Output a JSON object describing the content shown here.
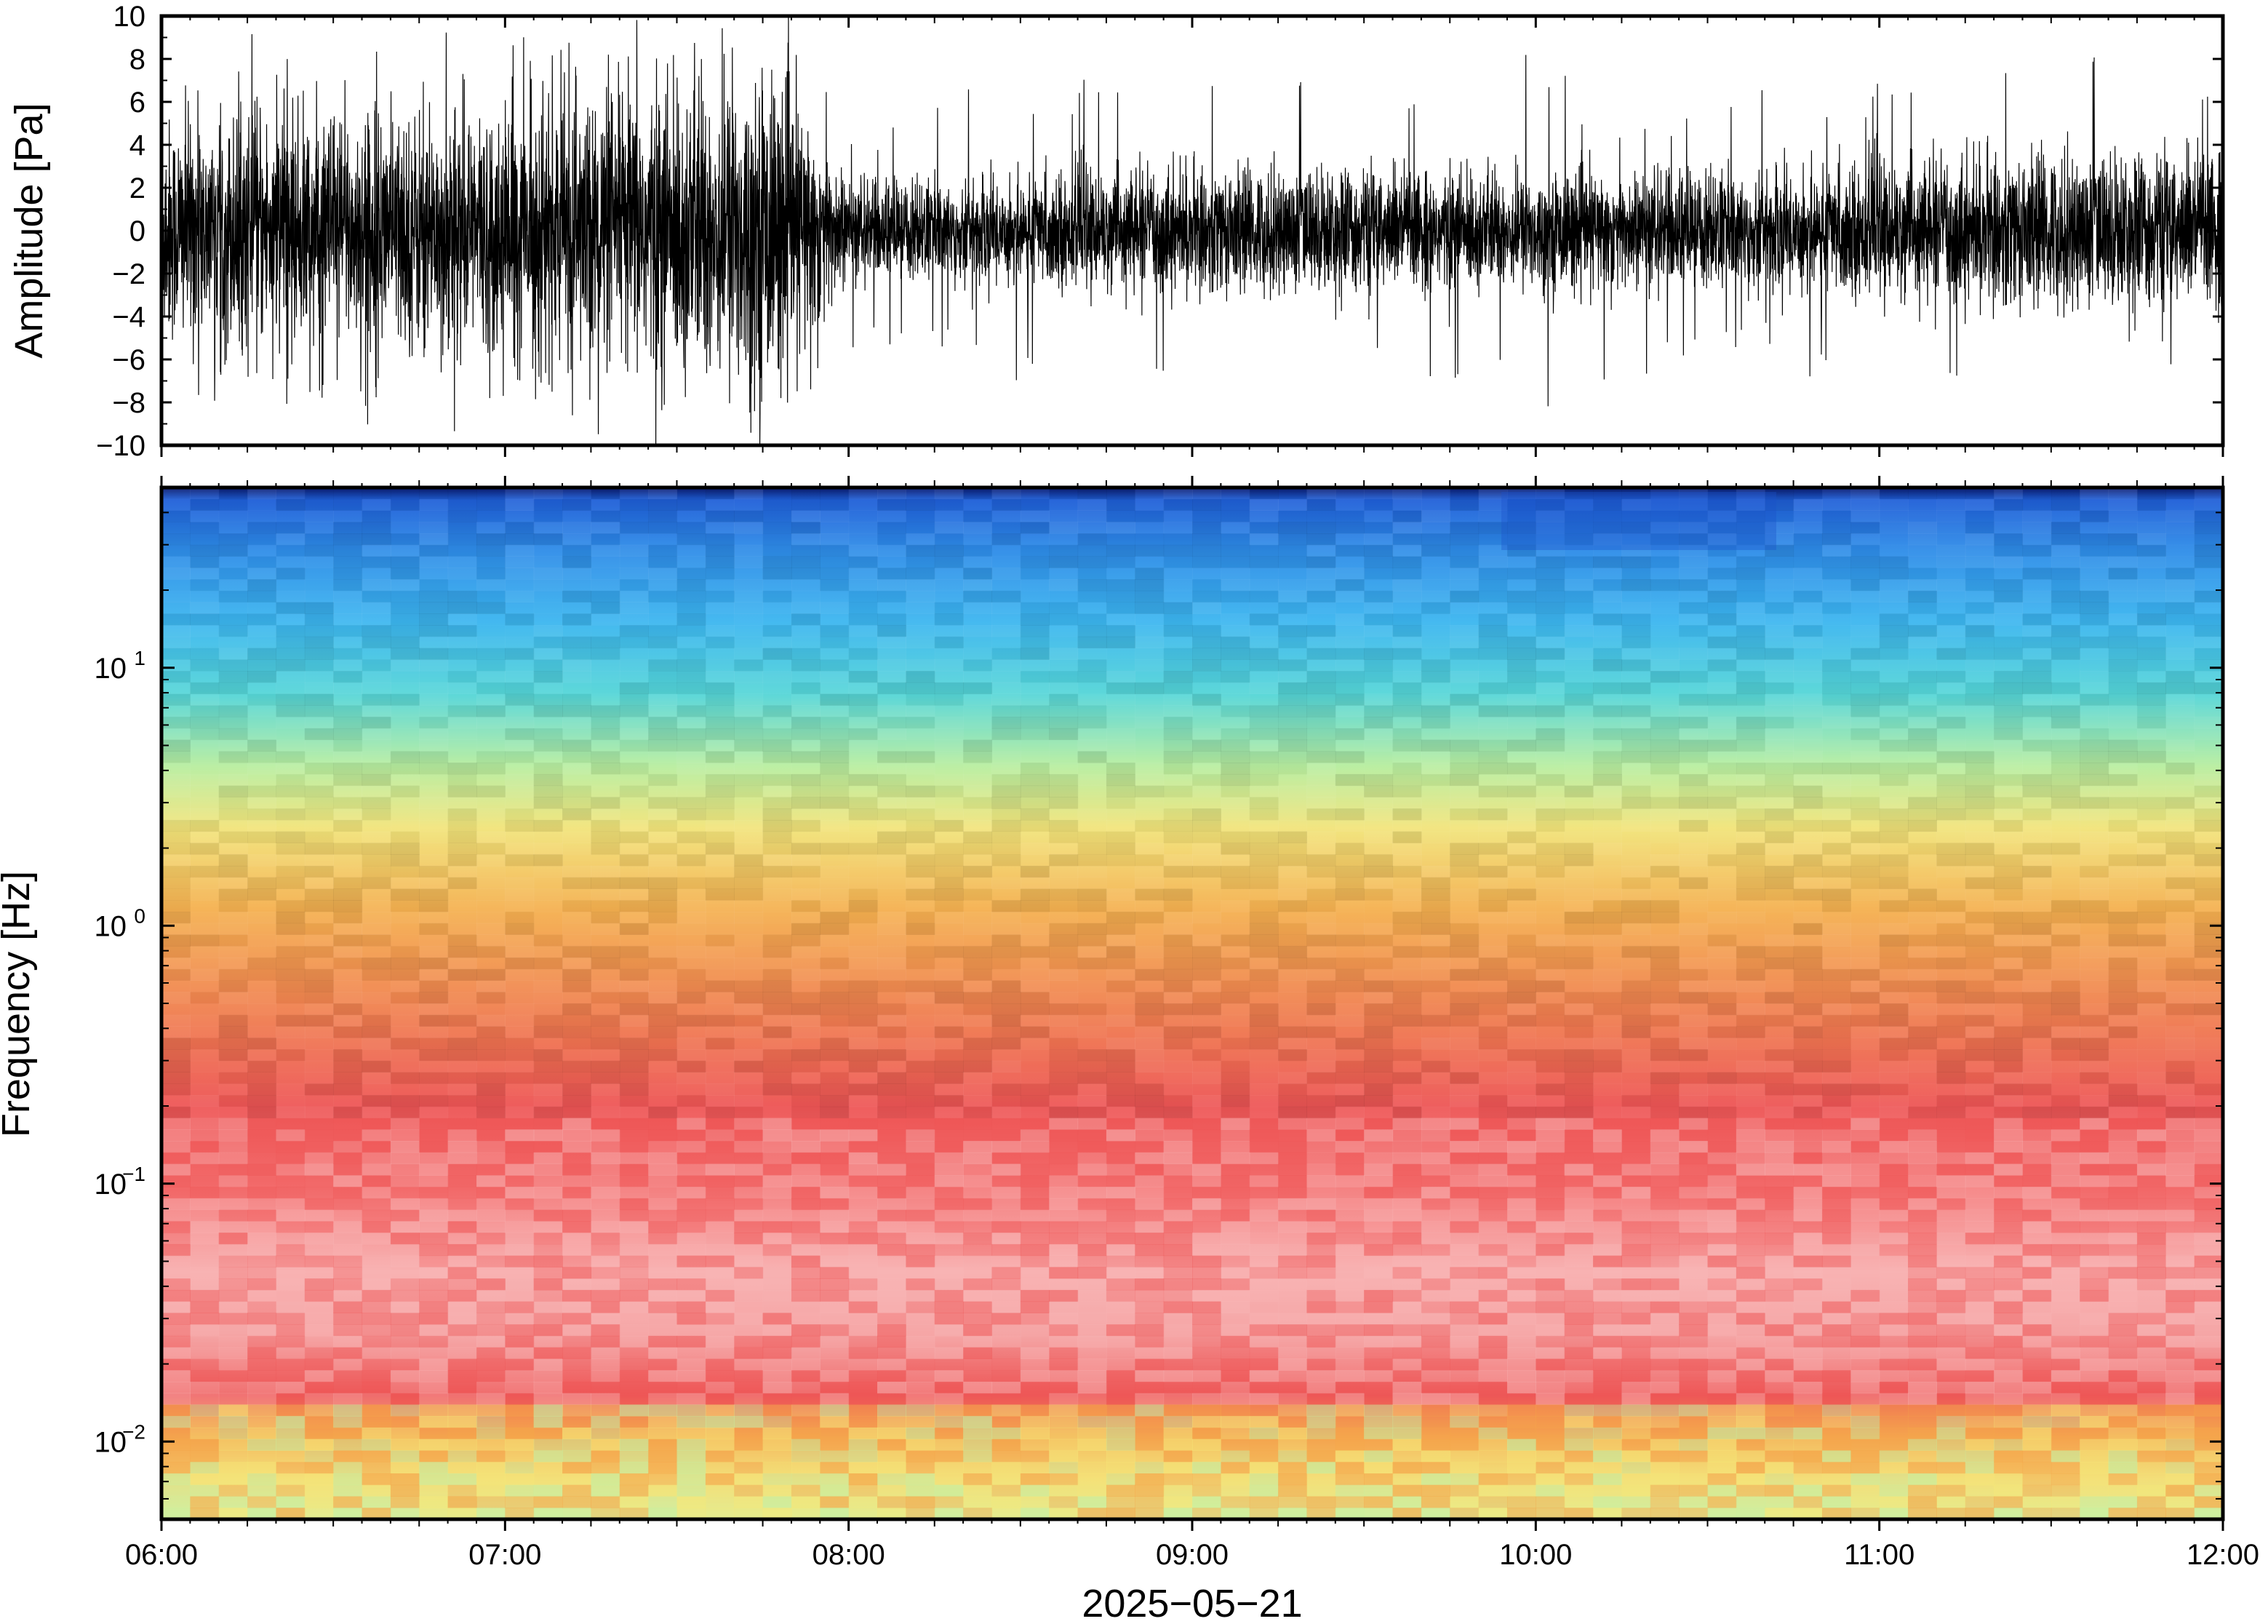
{
  "chart_data": [
    {
      "type": "line",
      "name": "waveform",
      "ylabel": "Amplitude [Pa]",
      "xlim": [
        "06:00",
        "12:00"
      ],
      "ylim": [
        -10,
        10
      ],
      "yticks": [
        {
          "value": 10,
          "label": "10"
        },
        {
          "value": 8,
          "label": "8"
        },
        {
          "value": 6,
          "label": "6"
        },
        {
          "value": 4,
          "label": "4"
        },
        {
          "value": 2,
          "label": "2"
        },
        {
          "value": 0,
          "label": "0"
        },
        {
          "value": -2,
          "label": "−2"
        },
        {
          "value": -4,
          "label": "−4"
        },
        {
          "value": -6,
          "label": "−6"
        },
        {
          "value": -8,
          "label": "−8"
        },
        {
          "value": -10,
          "label": "−10"
        }
      ],
      "grid": false,
      "envelope": {
        "time_hours": [
          6.0,
          6.5,
          7.0,
          7.4,
          7.75,
          7.9,
          8.0,
          8.5,
          9.0,
          9.5,
          10.0,
          10.5,
          11.0,
          11.5,
          12.0
        ],
        "typical_amplitude_pa": [
          3.4,
          3.5,
          3.5,
          4.2,
          4.8,
          3.2,
          1.5,
          1.6,
          1.8,
          1.9,
          1.7,
          1.8,
          1.9,
          2.3,
          2.4
        ],
        "max_peak_pa": [
          9.5,
          9.0,
          9.5,
          10,
          9.0,
          8.5,
          6.0,
          7.0,
          7.5,
          7.0,
          9.0,
          6.5,
          7.0,
          8.5,
          8.0
        ]
      }
    },
    {
      "type": "heatmap",
      "name": "spectrogram",
      "ylabel": "Frequency [Hz]",
      "xlabel": "2025−05−21",
      "y_scale": "log",
      "ylim_hz": [
        0.005,
        50
      ],
      "yticks": [
        {
          "value": 10,
          "base": "10",
          "exp": "1"
        },
        {
          "value": 1,
          "base": "10",
          "exp": "0"
        },
        {
          "value": 0.1,
          "base": "10",
          "exp": "−1"
        },
        {
          "value": 0.01,
          "base": "10",
          "exp": "−2"
        }
      ],
      "xticks": [
        "06:00",
        "07:00",
        "08:00",
        "09:00",
        "10:00",
        "11:00",
        "12:00"
      ],
      "xlim": [
        "06:00",
        "12:00"
      ],
      "colormap": "rainbow (dark blue = low, red/pink = high)",
      "colors": {
        "dark_blue": "#0a1a6e",
        "blue": "#1f6fe0",
        "light_blue": "#38b3f0",
        "cyan": "#3fe0d8",
        "light_green": "#c8f0a0",
        "yellow": "#f5e878",
        "orange": "#f5a84a",
        "red": "#ef5a5a",
        "pink": "#f8b0b0"
      }
    }
  ]
}
